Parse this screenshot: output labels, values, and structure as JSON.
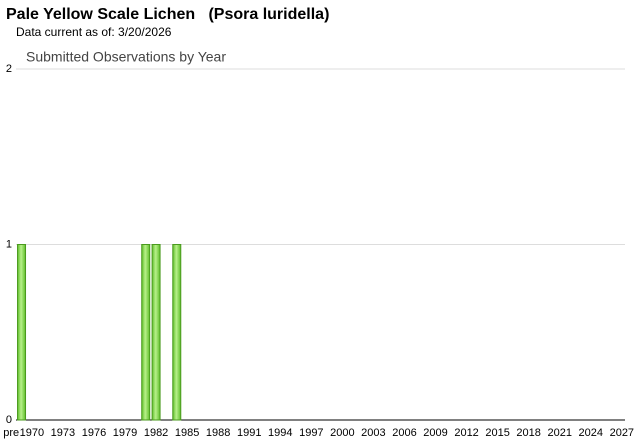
{
  "page_title": "Pale Yellow Scale Lichen   (Psora luridella)",
  "subtitle": "Data current as of: 3/20/2026",
  "chart_data": {
    "type": "bar",
    "title": "Submitted Observations by Year",
    "categories": [
      "pre",
      null,
      "1970",
      null,
      null,
      "1973",
      null,
      null,
      "1976",
      null,
      null,
      "1979",
      null,
      null,
      "1982",
      null,
      null,
      "1985",
      null,
      null,
      "1988",
      null,
      null,
      "1991",
      null,
      null,
      "1994",
      null,
      null,
      "1997",
      null,
      null,
      "2000",
      null,
      null,
      "2003",
      null,
      null,
      "2006",
      null,
      null,
      "2009",
      null,
      null,
      "2012",
      null,
      null,
      "2015",
      null,
      null,
      "2018",
      null,
      null,
      "2021",
      null,
      null,
      "2024",
      null,
      null,
      "2027"
    ],
    "values": [
      0,
      1,
      0,
      0,
      0,
      0,
      0,
      0,
      0,
      0,
      0,
      0,
      0,
      1,
      1,
      0,
      1,
      0,
      0,
      0,
      0,
      0,
      0,
      0,
      0,
      0,
      0,
      0,
      0,
      0,
      0,
      0,
      0,
      0,
      0,
      0,
      0,
      0,
      0,
      0,
      0,
      0,
      0,
      0,
      0,
      0,
      0,
      0,
      0,
      0,
      0,
      0,
      0,
      0,
      0,
      0,
      0,
      0,
      0,
      0
    ],
    "color": "#7ed957",
    "ylim": [
      0,
      2
    ],
    "yticks": [
      0,
      1,
      2
    ],
    "grid": true
  }
}
